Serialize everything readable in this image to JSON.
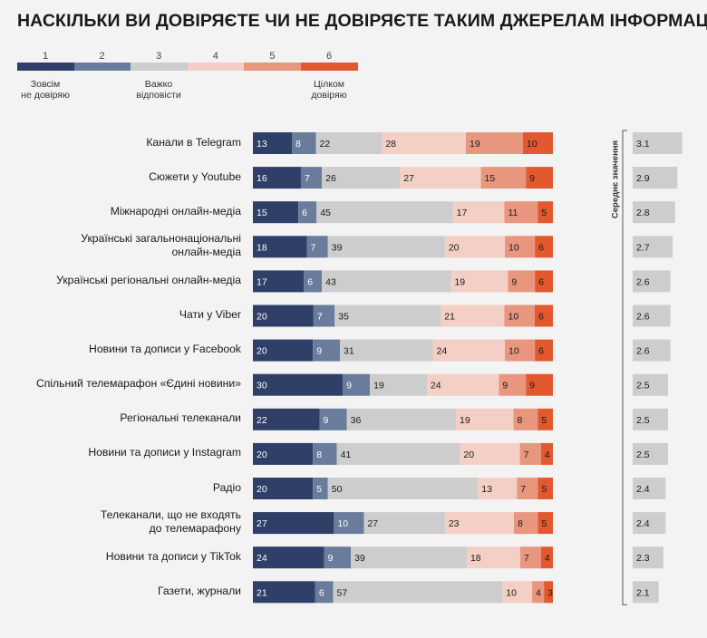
{
  "title": "НАСКІЛЬКИ ВИ ДОВІРЯЄТЕ ЧИ НЕ ДОВІРЯЄТЕ ТАКИМ ДЖЕРЕЛАМ ІНФОРМАЦІЇ?",
  "legend": {
    "scale": [
      "1",
      "2",
      "3",
      "4",
      "5",
      "6"
    ],
    "colors": [
      "#2f3f67",
      "#6a7c9b",
      "#cdcdcd",
      "#f3cfc5",
      "#e9967f",
      "#e2582f"
    ],
    "label_low": "Зовсім\nне довіряю",
    "label_mid": "Важко\nвідповісти",
    "label_high": "Цілком\nдовіряю"
  },
  "chart_data": {
    "type": "bar",
    "orientation": "horizontal-stacked",
    "title": "НАСКІЛЬКИ ВИ ДОВІРЯЄТЕ ЧИ НЕ ДОВІРЯЄТЕ ТАКИМ ДЖЕРЕЛАМ ІНФОРМАЦІЇ?",
    "unit": "%",
    "categories": [
      "Канали в Telegram",
      "Сюжети у Youtube",
      "Міжнародні онлайн-медіа",
      "Українські загальнонаціональні\nонлайн-медіа",
      "Українські регіональні онлайн-медіа",
      "Чати у Viber",
      "Новини та дописи у Facebook",
      "Спільний телемарафон «Єдині новини»",
      "Регіональні телеканали",
      "Новини та дописи у Instagram",
      "Радіо",
      "Телеканали, що не входять\nдо телемарафону",
      "Новини та дописи у TikTok",
      "Газети, журнали"
    ],
    "series": [
      {
        "name": "1",
        "values": [
          13,
          16,
          15,
          18,
          17,
          20,
          20,
          30,
          22,
          20,
          20,
          27,
          24,
          21
        ]
      },
      {
        "name": "2",
        "values": [
          8,
          7,
          6,
          7,
          6,
          7,
          9,
          9,
          9,
          8,
          5,
          10,
          9,
          6
        ]
      },
      {
        "name": "3",
        "values": [
          22,
          26,
          45,
          39,
          43,
          35,
          31,
          19,
          36,
          41,
          50,
          27,
          39,
          57
        ]
      },
      {
        "name": "4",
        "values": [
          28,
          27,
          17,
          20,
          19,
          21,
          24,
          24,
          19,
          20,
          13,
          23,
          18,
          10
        ]
      },
      {
        "name": "5",
        "values": [
          19,
          15,
          11,
          10,
          9,
          10,
          10,
          9,
          8,
          7,
          7,
          8,
          7,
          4
        ]
      },
      {
        "name": "6",
        "values": [
          10,
          9,
          5,
          6,
          6,
          6,
          6,
          9,
          5,
          4,
          5,
          5,
          4,
          3
        ]
      }
    ],
    "means": {
      "label": "Середнє значення",
      "values": [
        "3.1",
        "2.9",
        "2.8",
        "2.7",
        "2.6",
        "2.6",
        "2.6",
        "2.5",
        "2.5",
        "2.5",
        "2.4",
        "2.4",
        "2.3",
        "2.1"
      ]
    }
  }
}
